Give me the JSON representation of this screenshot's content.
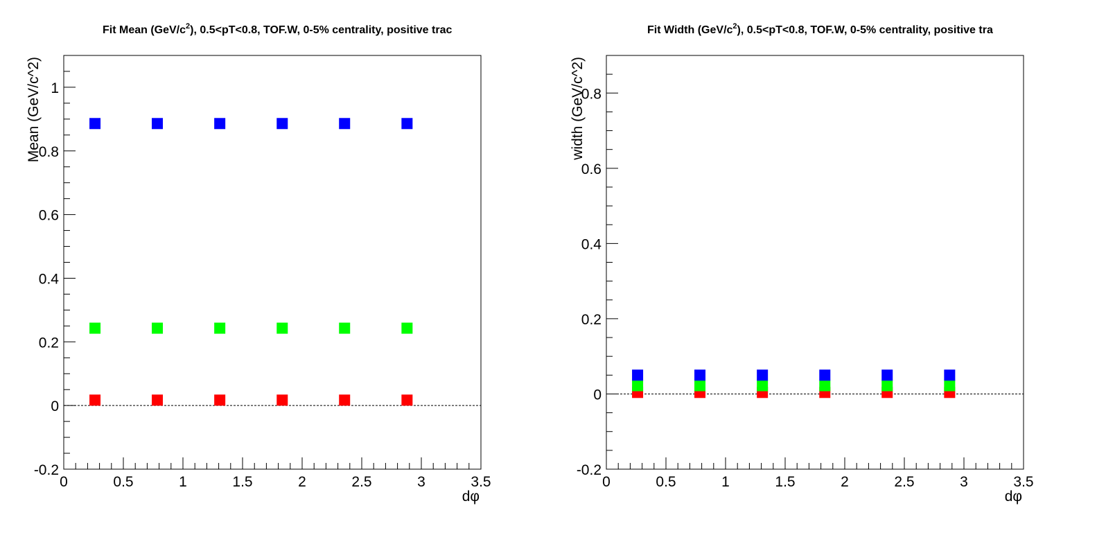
{
  "chart_data": [
    {
      "type": "scatter",
      "title_main": "Fit Mean (GeV/c",
      "title_sup": "2",
      "title_rest": "), 0.5<pT<0.8, TOF.W, 0-5% centrality, positive trac",
      "xlabel": "dφ",
      "ylabel": "Mean (GeV/c^2)",
      "xlim": [
        0,
        3.5
      ],
      "ylim": [
        -0.2,
        1.1
      ],
      "xticks": [
        0,
        0.5,
        1,
        1.5,
        2,
        2.5,
        3,
        3.5
      ],
      "xtick_labels": [
        "0",
        "0.5",
        "1",
        "1.5",
        "2",
        "2.5",
        "3",
        "3.5"
      ],
      "yticks": [
        -0.2,
        0,
        0.2,
        0.4,
        0.6,
        0.8,
        1
      ],
      "ytick_labels": [
        "-0.2",
        "0",
        "0.2",
        "0.4",
        "0.6",
        "0.8",
        "1"
      ],
      "reference_line_y": 0,
      "x": [
        0.262,
        0.785,
        1.309,
        1.833,
        2.356,
        2.88
      ],
      "series": [
        {
          "color": "#ff0000",
          "values": [
            0.017,
            0.017,
            0.017,
            0.017,
            0.017,
            0.017
          ]
        },
        {
          "color": "#00ff00",
          "values": [
            0.243,
            0.243,
            0.243,
            0.243,
            0.243,
            0.243
          ]
        },
        {
          "color": "#0000ff",
          "values": [
            0.886,
            0.886,
            0.886,
            0.886,
            0.886,
            0.886
          ]
        }
      ]
    },
    {
      "type": "scatter",
      "title_main": "Fit Width (GeV/c",
      "title_sup": "2",
      "title_rest": "), 0.5<pT<0.8, TOF.W, 0-5% centrality, positive tra",
      "xlabel": "dφ",
      "ylabel": "width (GeV/c^2)",
      "xlim": [
        0,
        3.5
      ],
      "ylim": [
        -0.2,
        0.9
      ],
      "xticks": [
        0,
        0.5,
        1,
        1.5,
        2,
        2.5,
        3,
        3.5
      ],
      "xtick_labels": [
        "0",
        "0.5",
        "1",
        "1.5",
        "2",
        "2.5",
        "3",
        "3.5"
      ],
      "yticks": [
        -0.2,
        0,
        0.2,
        0.4,
        0.6,
        0.8
      ],
      "ytick_labels": [
        "-0.2",
        "0",
        "0.2",
        "0.4",
        "0.6",
        "0.8"
      ],
      "reference_line_y": 0,
      "x": [
        0.262,
        0.785,
        1.309,
        1.833,
        2.356,
        2.88
      ],
      "series": [
        {
          "color": "#ff0000",
          "values": [
            0.004,
            0.004,
            0.004,
            0.004,
            0.004,
            0.004
          ]
        },
        {
          "color": "#00ff00",
          "values": [
            0.022,
            0.022,
            0.022,
            0.022,
            0.022,
            0.022
          ]
        },
        {
          "color": "#0000ff",
          "values": [
            0.05,
            0.05,
            0.05,
            0.05,
            0.05,
            0.05
          ]
        }
      ]
    }
  ]
}
